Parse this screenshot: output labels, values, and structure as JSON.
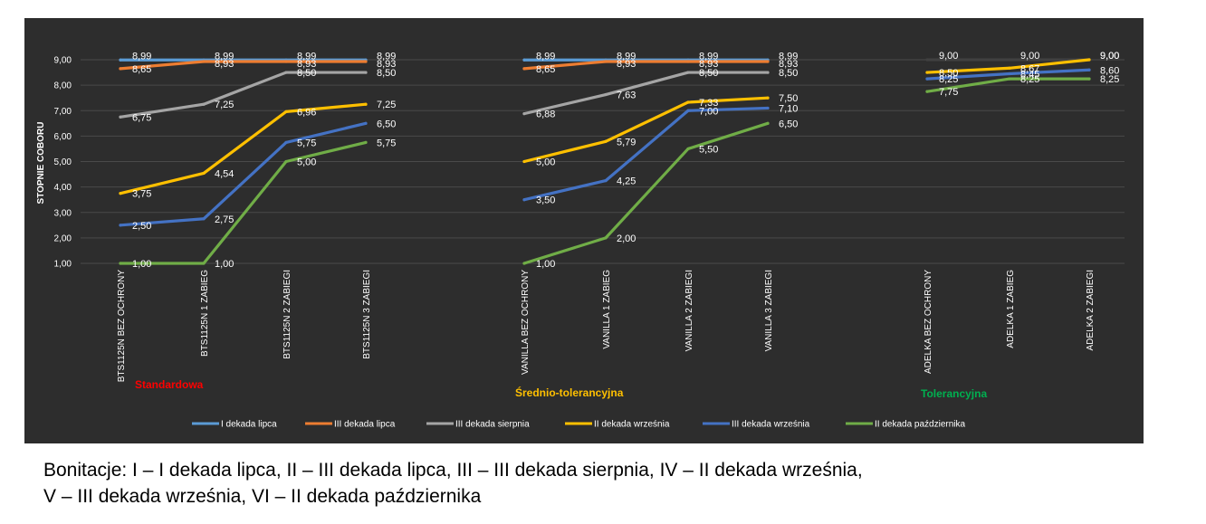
{
  "chart_data": {
    "type": "line",
    "ylabel": "STOPNIE COBORU",
    "ylim": [
      1,
      9
    ],
    "yticks": [
      "1,00",
      "2,00",
      "3,00",
      "4,00",
      "5,00",
      "6,00",
      "7,00",
      "8,00",
      "9,00"
    ],
    "grid": true,
    "legend_position": "bottom",
    "background": "#2e2e2e",
    "groups": [
      {
        "label": "Standardowa",
        "color": "#ff0000",
        "categories": [
          "BTS1125N BEZ OCHRONY",
          "BTS1125N 1 ZABIEG",
          "BTS1125N 2 ZABIEGI",
          "BTS1125N 3 ZABIEGI"
        ],
        "series": [
          {
            "name": "I dekada lipca",
            "values": [
              8.99,
              8.99,
              8.99,
              8.99
            ],
            "labels": [
              "8,99",
              "8,99",
              "8,99",
              "8,99"
            ]
          },
          {
            "name": "III dekada lipca",
            "values": [
              8.65,
              8.93,
              8.93,
              8.93
            ],
            "labels": [
              "8,65",
              "8,93",
              "8,93",
              "8,93"
            ]
          },
          {
            "name": "III dekada sierpnia",
            "values": [
              6.75,
              7.25,
              8.5,
              8.5
            ],
            "labels": [
              "6,75",
              "7,25",
              "8,50",
              "8,50"
            ]
          },
          {
            "name": "II dekada września",
            "values": [
              3.75,
              4.54,
              6.96,
              7.25
            ],
            "labels": [
              "3,75",
              "4,54",
              "6,96",
              "7,25"
            ]
          },
          {
            "name": "III dekada września",
            "values": [
              2.5,
              2.75,
              5.75,
              6.5
            ],
            "labels": [
              "2,50",
              "2,75",
              "5,75",
              "6,50"
            ]
          },
          {
            "name": "II dekada października",
            "values": [
              1.0,
              1.0,
              5.0,
              5.75
            ],
            "labels": [
              "1,00",
              "1,00",
              "5,00",
              "5,75"
            ]
          }
        ]
      },
      {
        "label": "Średnio-tolerancyjna",
        "color": "#ffc000",
        "categories": [
          "VANILLA BEZ OCHRONY",
          "VANILLA 1 ZABIEG",
          "VANILLA 2 ZABIEGI",
          "VANILLA 3 ZABIEGI"
        ],
        "series": [
          {
            "name": "I dekada lipca",
            "values": [
              8.99,
              8.99,
              8.99,
              8.99
            ],
            "labels": [
              "8,99",
              "8,99",
              "8,99",
              "8,99"
            ]
          },
          {
            "name": "III dekada lipca",
            "values": [
              8.65,
              8.93,
              8.93,
              8.93
            ],
            "labels": [
              "8,65",
              "8,93",
              "8,93",
              "8,93"
            ]
          },
          {
            "name": "III dekada sierpnia",
            "values": [
              6.88,
              7.63,
              8.5,
              8.5
            ],
            "labels": [
              "6,88",
              "7,63",
              "8,50",
              "8,50"
            ]
          },
          {
            "name": "II dekada września",
            "values": [
              5.0,
              5.79,
              7.33,
              7.5
            ],
            "labels": [
              "5,00",
              "5,79",
              "7,33",
              "7,50"
            ]
          },
          {
            "name": "III dekada września",
            "values": [
              3.5,
              4.25,
              7.0,
              7.1
            ],
            "labels": [
              "3,50",
              "4,25",
              "7,00",
              "7,10"
            ]
          },
          {
            "name": "II dekada października",
            "values": [
              1.0,
              2.0,
              5.5,
              6.5
            ],
            "labels": [
              "1,00",
              "2,00",
              "5,50",
              "6,50"
            ]
          }
        ]
      },
      {
        "label": "Tolerancyjna",
        "color": "#00b050",
        "categories": [
          "ADELKA BEZ OCHRONY",
          "ADELKA 1 ZABIEG",
          "ADELKA 2 ZABIEGI"
        ],
        "series": [
          {
            "name": "I dekada lipca",
            "values": [
              9.0,
              9.0,
              9.0
            ],
            "labels": [
              "9,00",
              "9,00",
              "9,00"
            ]
          },
          {
            "name": "II dekada września",
            "values": [
              8.5,
              8.67,
              9.0
            ],
            "labels": [
              "8,50",
              "8,67",
              "9,00"
            ]
          },
          {
            "name": "III dekada września",
            "values": [
              8.25,
              8.45,
              8.6
            ],
            "labels": [
              "8,25",
              "8,45",
              "8,60"
            ]
          },
          {
            "name": "II dekada października",
            "values": [
              7.75,
              8.25,
              8.25
            ],
            "labels": [
              "7,75",
              "8,25",
              "8,25"
            ]
          }
        ]
      }
    ],
    "legend": [
      {
        "name": "I dekada lipca",
        "color": "#5b9bd5"
      },
      {
        "name": "III dekada lipca",
        "color": "#ed7d31"
      },
      {
        "name": "III dekada sierpnia",
        "color": "#a5a5a5"
      },
      {
        "name": "II dekada września",
        "color": "#ffc000"
      },
      {
        "name": "III dekada września",
        "color": "#4472c4"
      },
      {
        "name": "II dekada października",
        "color": "#70ad47"
      }
    ],
    "tolerancyjna_first_series_color": "#404040"
  },
  "caption": {
    "line1": "Bonitacje: I – I dekada lipca, II – III dekada lipca, III – III dekada sierpnia, IV – II dekada września,",
    "line2": "V – III dekada września, VI – II dekada października"
  }
}
